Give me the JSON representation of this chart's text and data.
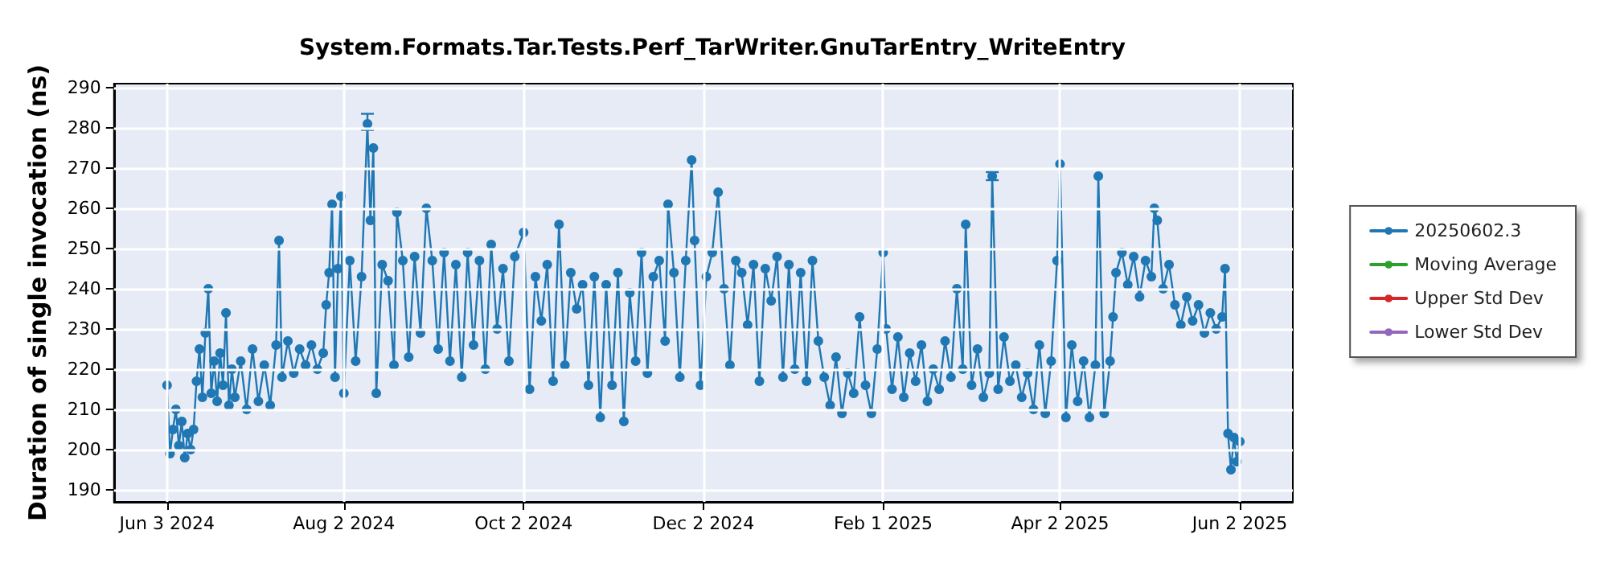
{
  "chart_data": {
    "type": "line",
    "title": "System.Formats.Tar.Tests.Perf_TarWriter.GnuTarEntry_WriteEntry",
    "ylabel": "Duration of single invocation (ns)",
    "xlim": [
      "2024-05-16",
      "2025-06-20"
    ],
    "ylim": [
      187,
      291
    ],
    "xticks": [
      {
        "value": "2024-06-03",
        "label": "Jun 3 2024"
      },
      {
        "value": "2024-08-02",
        "label": "Aug 2 2024"
      },
      {
        "value": "2024-10-02",
        "label": "Oct 2 2024"
      },
      {
        "value": "2024-12-02",
        "label": "Dec 2 2024"
      },
      {
        "value": "2025-02-01",
        "label": "Feb 1 2025"
      },
      {
        "value": "2025-04-02",
        "label": "Apr 2 2025"
      },
      {
        "value": "2025-06-02",
        "label": "Jun 2 2025"
      }
    ],
    "yticks": [
      190,
      200,
      210,
      220,
      230,
      240,
      250,
      260,
      270,
      280,
      290
    ],
    "grid": true,
    "legend": "right",
    "marker": "circle",
    "line_style": "solid",
    "series": [
      {
        "name": "20250602.3",
        "color": "#1f77b4",
        "x": [
          "2024-06-03",
          "2024-06-04",
          "2024-06-05",
          "2024-06-06",
          "2024-06-07",
          "2024-06-08",
          "2024-06-09",
          "2024-06-10",
          "2024-06-11",
          "2024-06-12",
          "2024-06-13",
          "2024-06-14",
          "2024-06-15",
          "2024-06-16",
          "2024-06-17",
          "2024-06-18",
          "2024-06-19",
          "2024-06-20",
          "2024-06-21",
          "2024-06-22",
          "2024-06-23",
          "2024-06-24",
          "2024-06-25",
          "2024-06-26",
          "2024-06-28",
          "2024-06-30",
          "2024-07-02",
          "2024-07-04",
          "2024-07-06",
          "2024-07-08",
          "2024-07-10",
          "2024-07-11",
          "2024-07-12",
          "2024-07-14",
          "2024-07-16",
          "2024-07-18",
          "2024-07-20",
          "2024-07-22",
          "2024-07-24",
          "2024-07-26",
          "2024-07-27",
          "2024-07-28",
          "2024-07-29",
          "2024-07-30",
          "2024-07-31",
          "2024-08-01",
          "2024-08-02",
          "2024-08-04",
          "2024-08-06",
          "2024-08-08",
          "2024-08-10",
          "2024-08-11",
          "2024-08-12",
          "2024-08-13",
          "2024-08-15",
          "2024-08-17",
          "2024-08-19",
          "2024-08-20",
          "2024-08-22",
          "2024-08-24",
          "2024-08-26",
          "2024-08-28",
          "2024-08-30",
          "2024-09-01",
          "2024-09-03",
          "2024-09-05",
          "2024-09-07",
          "2024-09-09",
          "2024-09-11",
          "2024-09-13",
          "2024-09-15",
          "2024-09-17",
          "2024-09-19",
          "2024-09-21",
          "2024-09-23",
          "2024-09-25",
          "2024-09-27",
          "2024-09-29",
          "2024-10-02",
          "2024-10-04",
          "2024-10-06",
          "2024-10-08",
          "2024-10-10",
          "2024-10-12",
          "2024-10-14",
          "2024-10-16",
          "2024-10-18",
          "2024-10-20",
          "2024-10-22",
          "2024-10-24",
          "2024-10-26",
          "2024-10-28",
          "2024-10-30",
          "2024-11-01",
          "2024-11-03",
          "2024-11-05",
          "2024-11-07",
          "2024-11-09",
          "2024-11-11",
          "2024-11-13",
          "2024-11-15",
          "2024-11-17",
          "2024-11-19",
          "2024-11-20",
          "2024-11-22",
          "2024-11-24",
          "2024-11-26",
          "2024-11-28",
          "2024-11-29",
          "2024-12-01",
          "2024-12-03",
          "2024-12-05",
          "2024-12-07",
          "2024-12-09",
          "2024-12-11",
          "2024-12-13",
          "2024-12-15",
          "2024-12-17",
          "2024-12-19",
          "2024-12-21",
          "2024-12-23",
          "2024-12-25",
          "2024-12-27",
          "2024-12-29",
          "2024-12-31",
          "2025-01-02",
          "2025-01-04",
          "2025-01-06",
          "2025-01-08",
          "2025-01-10",
          "2025-01-12",
          "2025-01-14",
          "2025-01-16",
          "2025-01-18",
          "2025-01-20",
          "2025-01-22",
          "2025-01-24",
          "2025-01-26",
          "2025-01-28",
          "2025-01-30",
          "2025-02-01",
          "2025-02-02",
          "2025-02-04",
          "2025-02-06",
          "2025-02-08",
          "2025-02-10",
          "2025-02-12",
          "2025-02-14",
          "2025-02-16",
          "2025-02-18",
          "2025-02-20",
          "2025-02-22",
          "2025-02-24",
          "2025-02-26",
          "2025-02-28",
          "2025-03-01",
          "2025-03-03",
          "2025-03-05",
          "2025-03-07",
          "2025-03-09",
          "2025-03-10",
          "2025-03-12",
          "2025-03-14",
          "2025-03-16",
          "2025-03-18",
          "2025-03-20",
          "2025-03-22",
          "2025-03-24",
          "2025-03-26",
          "2025-03-28",
          "2025-03-30",
          "2025-04-01",
          "2025-04-02",
          "2025-04-04",
          "2025-04-06",
          "2025-04-08",
          "2025-04-10",
          "2025-04-12",
          "2025-04-14",
          "2025-04-15",
          "2025-04-17",
          "2025-04-19",
          "2025-04-20",
          "2025-04-21",
          "2025-04-23",
          "2025-04-25",
          "2025-04-27",
          "2025-04-29",
          "2025-05-01",
          "2025-05-03",
          "2025-05-04",
          "2025-05-05",
          "2025-05-07",
          "2025-05-09",
          "2025-05-11",
          "2025-05-13",
          "2025-05-15",
          "2025-05-17",
          "2025-05-19",
          "2025-05-21",
          "2025-05-23",
          "2025-05-25",
          "2025-05-27",
          "2025-05-28",
          "2025-05-29",
          "2025-05-30",
          "2025-05-31",
          "2025-06-01",
          "2025-06-02"
        ],
        "values": [
          216,
          199,
          205,
          210,
          201,
          207,
          198,
          204,
          200,
          205,
          217,
          225,
          213,
          229,
          240,
          214,
          222,
          212,
          224,
          216,
          234,
          211,
          220,
          213,
          222,
          210,
          225,
          212,
          221,
          211,
          226,
          252,
          218,
          227,
          219,
          225,
          221,
          226,
          220,
          224,
          236,
          244,
          261,
          218,
          245,
          263,
          214,
          247,
          222,
          243,
          281,
          257,
          275,
          214,
          246,
          242,
          221,
          259,
          247,
          223,
          248,
          229,
          260,
          247,
          225,
          249,
          222,
          246,
          218,
          249,
          226,
          247,
          220,
          251,
          230,
          245,
          222,
          248,
          254,
          215,
          243,
          232,
          246,
          217,
          256,
          221,
          244,
          235,
          241,
          216,
          243,
          208,
          241,
          216,
          244,
          207,
          239,
          222,
          249,
          219,
          243,
          247,
          227,
          261,
          244,
          218,
          247,
          272,
          252,
          216,
          243,
          249,
          264,
          240,
          221,
          247,
          244,
          231,
          246,
          217,
          245,
          237,
          248,
          218,
          246,
          220,
          244,
          217,
          247,
          227,
          218,
          211,
          223,
          209,
          219,
          214,
          233,
          216,
          209,
          225,
          249,
          230,
          215,
          228,
          213,
          224,
          217,
          226,
          212,
          220,
          215,
          227,
          218,
          240,
          220,
          256,
          216,
          225,
          213,
          219,
          268,
          215,
          228,
          217,
          221,
          213,
          219,
          210,
          226,
          209,
          222,
          247,
          271,
          208,
          226,
          212,
          222,
          208,
          221,
          268,
          209,
          222,
          233,
          244,
          249,
          241,
          248,
          238,
          247,
          243,
          260,
          257,
          240,
          246,
          236,
          231,
          238,
          232,
          236,
          229,
          234,
          230,
          233,
          245,
          204,
          195,
          203,
          197,
          202
        ],
        "errors": [
          null,
          null,
          null,
          null,
          null,
          null,
          null,
          null,
          null,
          null,
          null,
          null,
          null,
          null,
          null,
          null,
          null,
          null,
          null,
          null,
          null,
          null,
          null,
          null,
          null,
          null,
          null,
          null,
          null,
          null,
          null,
          null,
          null,
          null,
          null,
          null,
          null,
          null,
          null,
          null,
          null,
          null,
          null,
          null,
          null,
          null,
          null,
          null,
          null,
          null,
          [
            279.5,
            283.5
          ],
          null,
          null,
          null,
          null,
          null,
          null,
          null,
          null,
          null,
          null,
          null,
          null,
          null,
          null,
          null,
          null,
          null,
          null,
          null,
          null,
          null,
          null,
          null,
          null,
          null,
          null,
          null,
          null,
          null,
          null,
          null,
          null,
          null,
          null,
          null,
          null,
          null,
          null,
          null,
          null,
          null,
          null,
          null,
          null,
          null,
          null,
          null,
          null,
          null,
          null,
          null,
          null,
          null,
          null,
          null,
          null,
          null,
          null,
          null,
          null,
          null,
          null,
          null,
          null,
          null,
          null,
          null,
          null,
          null,
          null,
          null,
          null,
          null,
          null,
          null,
          null,
          null,
          null,
          null,
          null,
          null,
          null,
          null,
          null,
          null,
          null,
          null,
          null,
          null,
          null,
          null,
          null,
          null,
          null,
          null,
          null,
          null,
          null,
          null,
          null,
          null,
          null,
          null,
          null,
          null,
          null,
          null,
          null,
          null,
          [
            267,
            269
          ],
          null,
          null,
          null,
          null,
          null,
          null,
          null,
          null,
          null,
          null,
          null,
          null,
          null,
          null,
          null,
          null,
          null,
          null,
          null,
          null,
          null,
          null,
          null,
          null,
          null,
          null,
          null,
          null,
          null,
          null,
          null,
          null,
          null,
          null,
          null,
          null,
          null,
          null,
          null,
          null,
          null,
          null,
          null,
          null,
          null,
          null,
          null,
          null
        ]
      },
      {
        "name": "Moving Average",
        "color": "#2ca02c"
      },
      {
        "name": "Upper Std Dev",
        "color": "#d62728"
      },
      {
        "name": "Lower Std Dev",
        "color": "#9467bd"
      }
    ]
  }
}
